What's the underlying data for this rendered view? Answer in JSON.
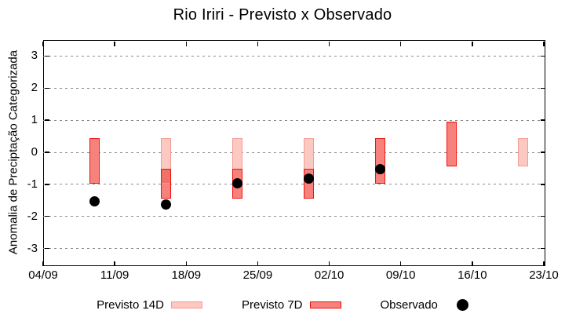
{
  "title": "Rio Iriri - Previsto x Observado",
  "y_axis": {
    "label": "Anomalia de Preciptação Categorizada",
    "tick_values": [
      3,
      2,
      1,
      0,
      -1,
      -2,
      -3
    ],
    "range": [
      -3.5,
      3.5
    ]
  },
  "x_axis": {
    "tick_labels": [
      "04/09",
      "11/09",
      "18/09",
      "25/09",
      "02/10",
      "09/10",
      "16/10",
      "23/10"
    ],
    "tick_day_offsets": [
      0,
      7,
      14,
      21,
      28,
      35,
      42,
      49
    ],
    "span_days": 49
  },
  "legend": {
    "items": [
      {
        "label": "Previsto 14D",
        "swatch": "band-14d"
      },
      {
        "label": "Previsto 7D",
        "swatch": "band-7d"
      },
      {
        "label": "Observado",
        "swatch": "dot"
      }
    ]
  },
  "colors": {
    "band_14d_fill": "#fbc8c2",
    "band_14d_border": "#f59c94",
    "band_7d_fill": "#f6827b",
    "band_7d_border": "#ed1410",
    "band_overlap_fill": "#f0716a",
    "band_divider": "#f4988e",
    "observed_dot": "#000000",
    "grid": "#8a8a8a",
    "axis": "#000000"
  },
  "chart_data": {
    "type": "bar",
    "subtype": "forecast-interval-bands-with-observed-scatter",
    "title": "Rio Iriri - Previsto x Observado",
    "xlabel": "",
    "ylabel": "Anomalia de Preciptação Categorizada",
    "ylim": [
      -3.5,
      3.5
    ],
    "grid": "horizontal-dashed",
    "legend_position": "below-plot",
    "x_domain": {
      "start": "04/09",
      "end": "23/10",
      "span_days": 49,
      "tick_interval_days": 7
    },
    "series": [
      {
        "name": "Previsto 14D",
        "type": "interval",
        "points": [
          {
            "date": "16/09",
            "day": 12,
            "low": -0.97,
            "high": 0.43
          },
          {
            "date": "23/09",
            "day": 19,
            "low": -0.52,
            "high": 0.43
          },
          {
            "date": "30/09",
            "day": 26,
            "low": -0.52,
            "high": 0.43
          },
          {
            "date": "21/10",
            "day": 47,
            "low": -0.45,
            "high": 0.43
          }
        ]
      },
      {
        "name": "Previsto 7D",
        "type": "interval",
        "points": [
          {
            "date": "09/09",
            "day": 5,
            "low": -0.97,
            "high": 0.43
          },
          {
            "date": "16/09",
            "day": 12,
            "low": -1.45,
            "high": -0.52
          },
          {
            "date": "23/09",
            "day": 19,
            "low": -1.45,
            "high": -0.52
          },
          {
            "date": "30/09",
            "day": 26,
            "low": -1.45,
            "high": -0.52
          },
          {
            "date": "07/10",
            "day": 33,
            "low": -0.97,
            "high": 0.43
          },
          {
            "date": "14/10",
            "day": 40,
            "low": -0.45,
            "high": 0.95
          }
        ]
      },
      {
        "name": "Observado",
        "type": "scatter",
        "points": [
          {
            "date": "09/09",
            "day": 5,
            "value": -1.52
          },
          {
            "date": "16/09",
            "day": 12,
            "value": -1.63
          },
          {
            "date": "23/09",
            "day": 19,
            "value": -0.97
          },
          {
            "date": "30/09",
            "day": 26,
            "value": -0.82
          },
          {
            "date": "07/10",
            "day": 33,
            "value": -0.53
          }
        ]
      }
    ]
  }
}
